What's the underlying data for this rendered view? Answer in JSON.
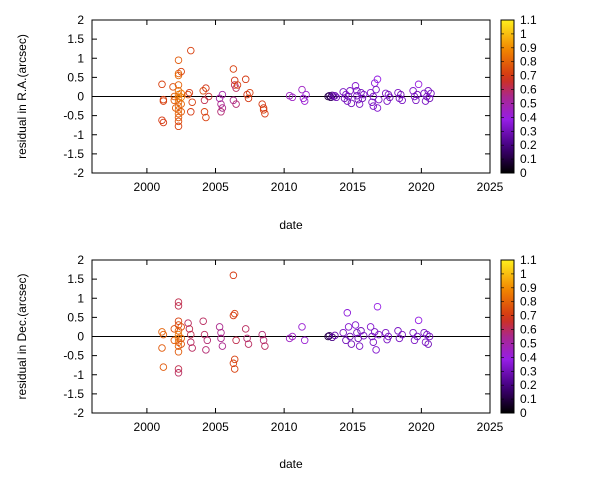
{
  "chart_data": [
    {
      "type": "scatter",
      "xlabel": "date",
      "ylabel": "residual in R.A.(arcsec)",
      "xlim": [
        1996,
        2025
      ],
      "ylim": [
        -2,
        2
      ],
      "xticks": [
        2000,
        2005,
        2010,
        2015,
        2020,
        2025
      ],
      "yticks": [
        -2,
        -1.5,
        -1,
        -0.5,
        0,
        0.5,
        1,
        1.5,
        2
      ],
      "zero_line": true,
      "colorbar": {
        "min": 0,
        "max": 1.1,
        "ticks": [
          0,
          0.1,
          0.2,
          0.3,
          0.4,
          0.5,
          0.6,
          0.7,
          0.8,
          0.9,
          1,
          1.1
        ],
        "palette": "black-purple-red-orange-yellow",
        "position": "right"
      },
      "marker": "open-circle",
      "points": [
        [
          2001.1,
          0.32,
          0.72
        ],
        [
          2001.2,
          -0.08,
          0.72
        ],
        [
          2001.2,
          -0.12,
          0.72
        ],
        [
          2001.1,
          -0.62,
          0.7
        ],
        [
          2001.2,
          -0.68,
          0.7
        ],
        [
          2001.9,
          0.25,
          0.75
        ],
        [
          2002.0,
          0.0,
          0.78
        ],
        [
          2002.0,
          -0.1,
          0.78
        ],
        [
          2002.1,
          -0.3,
          0.78
        ],
        [
          2002.3,
          0.95,
          0.78
        ],
        [
          2002.3,
          0.6,
          0.8
        ],
        [
          2002.3,
          0.55,
          0.82
        ],
        [
          2002.3,
          0.3,
          0.8
        ],
        [
          2002.3,
          0.15,
          0.82
        ],
        [
          2002.3,
          0.05,
          0.85
        ],
        [
          2002.3,
          -0.05,
          0.85
        ],
        [
          2002.3,
          -0.15,
          0.82
        ],
        [
          2002.3,
          -0.25,
          0.8
        ],
        [
          2002.3,
          -0.35,
          0.82
        ],
        [
          2002.3,
          -0.45,
          0.8
        ],
        [
          2002.3,
          -0.55,
          0.78
        ],
        [
          2002.3,
          -0.65,
          0.75
        ],
        [
          2002.3,
          -0.78,
          0.72
        ],
        [
          2002.5,
          0.65,
          0.72
        ],
        [
          2002.5,
          0.08,
          0.85
        ],
        [
          2002.5,
          -0.02,
          0.88
        ],
        [
          2002.5,
          -0.2,
          0.8
        ],
        [
          2002.5,
          -0.4,
          0.78
        ],
        [
          2003.0,
          0.05,
          0.75
        ],
        [
          2003.1,
          0.1,
          0.7
        ],
        [
          2003.2,
          -0.4,
          0.7
        ],
        [
          2003.3,
          -0.15,
          0.72
        ],
        [
          2003.2,
          1.2,
          0.72
        ],
        [
          2004.1,
          0.15,
          0.75
        ],
        [
          2004.2,
          -0.4,
          0.72
        ],
        [
          2004.3,
          -0.55,
          0.72
        ],
        [
          2004.3,
          0.22,
          0.68
        ],
        [
          2004.5,
          0.0,
          0.65
        ],
        [
          2004.2,
          -0.1,
          0.62
        ],
        [
          2005.3,
          -0.05,
          0.5
        ],
        [
          2005.4,
          -0.2,
          0.55
        ],
        [
          2005.5,
          -0.3,
          0.55
        ],
        [
          2005.4,
          -0.4,
          0.58
        ],
        [
          2005.5,
          0.05,
          0.5
        ],
        [
          2006.3,
          0.72,
          0.72
        ],
        [
          2006.4,
          0.42,
          0.68
        ],
        [
          2006.4,
          0.3,
          0.62
        ],
        [
          2006.5,
          0.22,
          0.6
        ],
        [
          2006.3,
          -0.1,
          0.55
        ],
        [
          2006.5,
          -0.2,
          0.58
        ],
        [
          2006.6,
          0.3,
          0.72
        ],
        [
          2007.2,
          0.45,
          0.7
        ],
        [
          2007.3,
          0.05,
          0.68
        ],
        [
          2007.4,
          -0.05,
          0.7
        ],
        [
          2007.5,
          0.1,
          0.72
        ],
        [
          2008.4,
          -0.2,
          0.7
        ],
        [
          2008.5,
          -0.3,
          0.7
        ],
        [
          2008.6,
          -0.45,
          0.7
        ],
        [
          2008.5,
          -0.35,
          0.72
        ],
        [
          2010.4,
          0.02,
          0.45
        ],
        [
          2010.6,
          -0.02,
          0.45
        ],
        [
          2011.3,
          0.18,
          0.45
        ],
        [
          2011.4,
          -0.05,
          0.42
        ],
        [
          2011.5,
          -0.12,
          0.42
        ],
        [
          2011.6,
          0.05,
          0.42
        ],
        [
          2013.2,
          0.0,
          0.1
        ],
        [
          2013.3,
          0.02,
          0.15
        ],
        [
          2013.4,
          -0.02,
          0.12
        ],
        [
          2013.5,
          0.03,
          0.2
        ],
        [
          2013.6,
          0.0,
          0.25
        ],
        [
          2013.7,
          0.02,
          0.3
        ],
        [
          2013.8,
          -0.02,
          0.3
        ],
        [
          2014.3,
          0.12,
          0.32
        ],
        [
          2014.4,
          -0.05,
          0.3
        ],
        [
          2014.5,
          0.05,
          0.32
        ],
        [
          2014.6,
          -0.12,
          0.32
        ],
        [
          2014.7,
          0.0,
          0.3
        ],
        [
          2014.8,
          0.15,
          0.32
        ],
        [
          2014.9,
          -0.18,
          0.3
        ],
        [
          2015.2,
          0.28,
          0.34
        ],
        [
          2015.3,
          0.15,
          0.32
        ],
        [
          2015.3,
          0.02,
          0.32
        ],
        [
          2015.4,
          -0.08,
          0.3
        ],
        [
          2015.5,
          -0.2,
          0.32
        ],
        [
          2015.6,
          0.1,
          0.3
        ],
        [
          2015.7,
          -0.05,
          0.3
        ],
        [
          2015.8,
          0.05,
          0.32
        ],
        [
          2016.3,
          0.1,
          0.34
        ],
        [
          2016.4,
          -0.15,
          0.32
        ],
        [
          2016.5,
          0.0,
          0.32
        ],
        [
          2016.6,
          0.35,
          0.36
        ],
        [
          2016.7,
          0.18,
          0.32
        ],
        [
          2016.8,
          0.45,
          0.38
        ],
        [
          2016.8,
          -0.3,
          0.34
        ],
        [
          2016.9,
          -0.08,
          0.32
        ],
        [
          2016.5,
          -0.25,
          0.32
        ],
        [
          2017.4,
          0.08,
          0.32
        ],
        [
          2017.5,
          -0.12,
          0.32
        ],
        [
          2017.6,
          0.05,
          0.32
        ],
        [
          2017.7,
          -0.02,
          0.3
        ],
        [
          2018.3,
          0.1,
          0.32
        ],
        [
          2018.4,
          -0.05,
          0.32
        ],
        [
          2018.5,
          0.05,
          0.3
        ],
        [
          2018.6,
          -0.1,
          0.32
        ],
        [
          2019.4,
          0.15,
          0.34
        ],
        [
          2019.5,
          0.0,
          0.32
        ],
        [
          2019.6,
          -0.1,
          0.32
        ],
        [
          2019.7,
          0.05,
          0.3
        ],
        [
          2019.8,
          0.32,
          0.4
        ],
        [
          2020.2,
          0.08,
          0.32
        ],
        [
          2020.3,
          -0.12,
          0.32
        ],
        [
          2020.4,
          0.0,
          0.3
        ],
        [
          2020.5,
          0.15,
          0.32
        ],
        [
          2020.6,
          -0.05,
          0.3
        ],
        [
          2020.7,
          0.08,
          0.32
        ]
      ]
    },
    {
      "type": "scatter",
      "xlabel": "date",
      "ylabel": "residual in Dec.(arcsec)",
      "xlim": [
        1996,
        2025
      ],
      "ylim": [
        -2,
        2
      ],
      "xticks": [
        2000,
        2005,
        2010,
        2015,
        2020,
        2025
      ],
      "yticks": [
        -2,
        -1.5,
        -1,
        -0.5,
        0,
        0.5,
        1,
        1.5,
        2
      ],
      "zero_line": true,
      "colorbar": {
        "min": 0,
        "max": 1.1,
        "ticks": [
          0,
          0.1,
          0.2,
          0.3,
          0.4,
          0.5,
          0.6,
          0.7,
          0.8,
          0.9,
          1,
          1.1
        ],
        "palette": "black-purple-red-orange-yellow",
        "position": "right"
      },
      "marker": "open-circle",
      "points": [
        [
          2001.1,
          0.12,
          0.8
        ],
        [
          2001.2,
          0.05,
          0.8
        ],
        [
          2001.1,
          -0.3,
          0.78
        ],
        [
          2001.2,
          -0.8,
          0.78
        ],
        [
          2002.0,
          0.2,
          0.75
        ],
        [
          2002.0,
          -0.1,
          0.78
        ],
        [
          2002.3,
          0.9,
          0.62
        ],
        [
          2002.3,
          0.8,
          0.62
        ],
        [
          2002.3,
          0.4,
          0.72
        ],
        [
          2002.3,
          0.3,
          0.75
        ],
        [
          2002.3,
          0.15,
          0.8
        ],
        [
          2002.3,
          0.05,
          0.85
        ],
        [
          2002.3,
          -0.05,
          0.85
        ],
        [
          2002.3,
          -0.15,
          0.82
        ],
        [
          2002.3,
          -0.25,
          0.8
        ],
        [
          2002.3,
          -0.4,
          0.78
        ],
        [
          2002.3,
          -0.85,
          0.62
        ],
        [
          2002.3,
          -0.95,
          0.6
        ],
        [
          2002.5,
          0.25,
          0.75
        ],
        [
          2002.5,
          -0.05,
          0.8
        ],
        [
          2002.5,
          -0.2,
          0.75
        ],
        [
          2003.0,
          0.35,
          0.6
        ],
        [
          2003.1,
          0.2,
          0.62
        ],
        [
          2003.2,
          -0.15,
          0.6
        ],
        [
          2003.3,
          -0.3,
          0.6
        ],
        [
          2003.2,
          0.05,
          0.62
        ],
        [
          2004.1,
          0.4,
          0.6
        ],
        [
          2004.2,
          0.05,
          0.6
        ],
        [
          2004.3,
          -0.35,
          0.58
        ],
        [
          2004.4,
          -0.1,
          0.58
        ],
        [
          2005.3,
          0.25,
          0.55
        ],
        [
          2005.4,
          -0.05,
          0.55
        ],
        [
          2005.5,
          -0.25,
          0.55
        ],
        [
          2005.4,
          0.1,
          0.55
        ],
        [
          2006.3,
          1.6,
          0.7
        ],
        [
          2006.3,
          0.55,
          0.7
        ],
        [
          2006.4,
          0.6,
          0.72
        ],
        [
          2006.4,
          -0.6,
          0.72
        ],
        [
          2006.3,
          -0.7,
          0.72
        ],
        [
          2006.4,
          -0.85,
          0.72
        ],
        [
          2006.5,
          -0.1,
          0.62
        ],
        [
          2007.2,
          0.2,
          0.6
        ],
        [
          2007.3,
          -0.05,
          0.58
        ],
        [
          2007.4,
          -0.2,
          0.6
        ],
        [
          2008.4,
          0.05,
          0.58
        ],
        [
          2008.5,
          -0.1,
          0.58
        ],
        [
          2008.6,
          -0.25,
          0.6
        ],
        [
          2010.4,
          -0.05,
          0.45
        ],
        [
          2010.6,
          0.0,
          0.45
        ],
        [
          2011.3,
          0.25,
          0.42
        ],
        [
          2011.5,
          -0.1,
          0.42
        ],
        [
          2013.2,
          0.0,
          0.1
        ],
        [
          2013.3,
          0.02,
          0.15
        ],
        [
          2013.5,
          -0.02,
          0.2
        ],
        [
          2013.7,
          0.03,
          0.28
        ],
        [
          2014.3,
          0.1,
          0.32
        ],
        [
          2014.5,
          -0.1,
          0.3
        ],
        [
          2014.6,
          0.62,
          0.36
        ],
        [
          2014.7,
          0.25,
          0.34
        ],
        [
          2014.8,
          0.0,
          0.3
        ],
        [
          2014.9,
          -0.2,
          0.3
        ],
        [
          2015.2,
          0.3,
          0.34
        ],
        [
          2015.3,
          0.1,
          0.32
        ],
        [
          2015.4,
          -0.05,
          0.3
        ],
        [
          2015.5,
          -0.25,
          0.32
        ],
        [
          2015.6,
          0.15,
          0.3
        ],
        [
          2015.8,
          0.02,
          0.32
        ],
        [
          2016.3,
          0.25,
          0.34
        ],
        [
          2016.4,
          0.0,
          0.32
        ],
        [
          2016.5,
          -0.15,
          0.32
        ],
        [
          2016.6,
          0.12,
          0.32
        ],
        [
          2016.7,
          -0.35,
          0.34
        ],
        [
          2016.8,
          0.78,
          0.38
        ],
        [
          2016.9,
          0.05,
          0.32
        ],
        [
          2017.4,
          0.1,
          0.32
        ],
        [
          2017.5,
          -0.08,
          0.32
        ],
        [
          2017.6,
          0.0,
          0.32
        ],
        [
          2018.3,
          0.15,
          0.32
        ],
        [
          2018.4,
          -0.05,
          0.32
        ],
        [
          2018.6,
          0.05,
          0.32
        ],
        [
          2019.4,
          0.1,
          0.32
        ],
        [
          2019.5,
          -0.1,
          0.32
        ],
        [
          2019.7,
          0.0,
          0.32
        ],
        [
          2019.8,
          0.42,
          0.38
        ],
        [
          2020.2,
          0.1,
          0.32
        ],
        [
          2020.3,
          -0.15,
          0.32
        ],
        [
          2020.4,
          0.05,
          0.32
        ],
        [
          2020.5,
          -0.2,
          0.3
        ],
        [
          2020.6,
          0.0,
          0.32
        ]
      ]
    }
  ]
}
